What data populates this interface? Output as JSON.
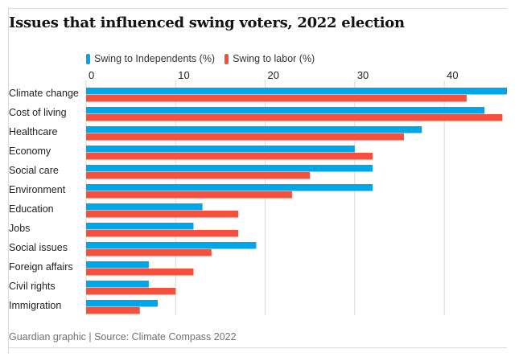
{
  "title": "Issues that influenced swing voters, 2022 election",
  "source": "Guardian graphic | Source: Climate Compass 2022",
  "colors": {
    "independents": "#00a6e8",
    "labor": "#f4503c",
    "grid": "#d9d9d9",
    "text": "#222222"
  },
  "chart_data": {
    "type": "bar",
    "orientation": "horizontal",
    "title": "Issues that influenced swing voters, 2022 election",
    "xlabel": "",
    "ylabel": "",
    "xlim": [
      0,
      47
    ],
    "xticks": [
      0,
      10,
      20,
      30,
      40
    ],
    "grid": true,
    "legend_position": "top",
    "categories": [
      "Climate change",
      "Cost of living",
      "Healthcare",
      "Economy",
      "Social care",
      "Environment",
      "Education",
      "Jobs",
      "Social issues",
      "Foreign affairs",
      "Civil rights",
      "Immigration"
    ],
    "series": [
      {
        "name": "Swing to Independents (%)",
        "color": "#00a6e8",
        "values": [
          47,
          44.5,
          37.5,
          30,
          32,
          32,
          13,
          12,
          19,
          7,
          7,
          8
        ]
      },
      {
        "name": "Swing to labor (%)",
        "color": "#f4503c",
        "values": [
          42.5,
          46.5,
          35.5,
          32,
          25,
          23,
          17,
          17,
          14,
          12,
          10,
          6
        ]
      }
    ]
  }
}
